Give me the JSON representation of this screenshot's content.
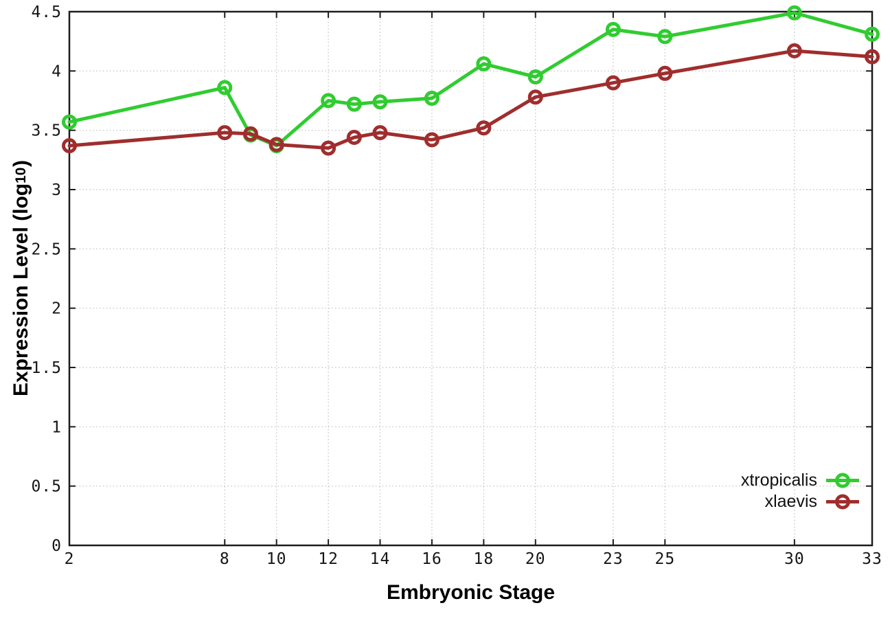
{
  "figure": {
    "background": "#ffffff",
    "border_color": "#1c1c1c",
    "grid_color": "#bcbcbc",
    "tick_label_color": "#161616"
  },
  "labels": {
    "y_title_main": "Expression Level (log",
    "y_title_sub": "10",
    "y_title_close": ")",
    "x_title": "Embryonic Stage"
  },
  "legend": {
    "items": [
      {
        "label": "xtropicalis",
        "color": "#30cc30",
        "marker": "open-circle"
      },
      {
        "label": "xlaevis",
        "color": "#a02d2d",
        "marker": "open-circle"
      }
    ]
  },
  "chart_data": {
    "type": "line",
    "title": "",
    "xlabel": "Embryonic Stage",
    "ylabel": "Expression Level (log10)",
    "x": [
      2,
      8,
      9,
      10,
      12,
      13,
      14,
      16,
      18,
      20,
      23,
      25,
      30,
      33
    ],
    "series": [
      {
        "name": "xtropicalis",
        "color": "#30cc30",
        "values": [
          3.57,
          3.86,
          3.46,
          3.37,
          3.75,
          3.72,
          3.74,
          3.77,
          4.06,
          3.95,
          4.35,
          4.29,
          4.49,
          4.31
        ]
      },
      {
        "name": "xlaevis",
        "color": "#a02d2d",
        "values": [
          3.37,
          3.48,
          3.47,
          3.38,
          3.35,
          3.44,
          3.48,
          3.42,
          3.52,
          3.78,
          3.9,
          3.98,
          4.17,
          4.12
        ]
      }
    ],
    "x_ticks": [
      2,
      8,
      10,
      12,
      14,
      16,
      18,
      20,
      23,
      25,
      30,
      33
    ],
    "y_ticks": [
      0,
      0.5,
      1,
      1.5,
      2,
      2.5,
      3,
      3.5,
      4,
      4.5
    ],
    "xlim": [
      2,
      33
    ],
    "ylim": [
      0,
      4.5
    ],
    "grid": true,
    "legend_position": "bottom-right",
    "marker": "open-circle"
  }
}
